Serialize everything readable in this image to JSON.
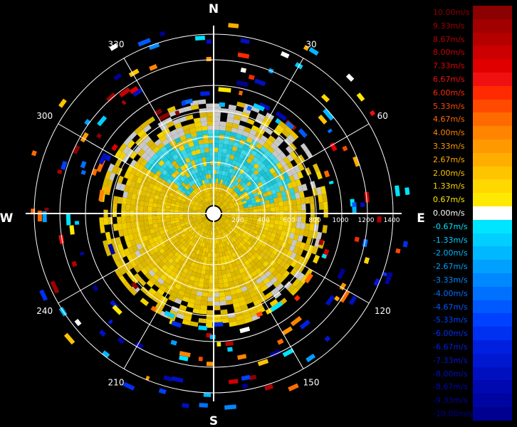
{
  "chart_data": {
    "type": "polar-radar",
    "compass": {
      "north": "N",
      "east": "E",
      "south": "S",
      "west": "W"
    },
    "angle_labels": [
      "30",
      "60",
      "120",
      "150",
      "210",
      "240",
      "300",
      "330"
    ],
    "range_labels": [
      "200",
      "400",
      "600",
      "800",
      "1000",
      "1200",
      "1400"
    ],
    "rings": [
      200,
      400,
      600,
      800,
      1000,
      1200,
      1400
    ],
    "spokes_deg": [
      0,
      30,
      60,
      90,
      120,
      150,
      180,
      210,
      240,
      270,
      300,
      330
    ],
    "legend": [
      {
        "label": "10.00m/s",
        "color": "#8b0000"
      },
      {
        "label": "9.33m/s",
        "color": "#a00000"
      },
      {
        "label": "8.67m/s",
        "color": "#b50000"
      },
      {
        "label": "8.00m/s",
        "color": "#cc0000"
      },
      {
        "label": "7.33m/s",
        "color": "#e00000"
      },
      {
        "label": "6.67m/s",
        "color": "#f01010"
      },
      {
        "label": "6.00m/s",
        "color": "#ff2a00"
      },
      {
        "label": "5.33m/s",
        "color": "#ff4a00"
      },
      {
        "label": "4.67m/s",
        "color": "#ff6a00"
      },
      {
        "label": "4.00m/s",
        "color": "#ff8400"
      },
      {
        "label": "3.33m/s",
        "color": "#ff9900"
      },
      {
        "label": "2.67m/s",
        "color": "#ffae00"
      },
      {
        "label": "2.00m/s",
        "color": "#ffc400"
      },
      {
        "label": "1.33m/s",
        "color": "#ffd800"
      },
      {
        "label": "0.67m/s",
        "color": "#ffe900"
      },
      {
        "label": "0.00m/s",
        "color": "#ffffff"
      },
      {
        "label": "-0.67m/s",
        "color": "#00e5ff"
      },
      {
        "label": "-1.33m/s",
        "color": "#00cfff"
      },
      {
        "label": "-2.00m/s",
        "color": "#00b8ff"
      },
      {
        "label": "-2.67m/s",
        "color": "#00a0ff"
      },
      {
        "label": "-3.33m/s",
        "color": "#0088ff"
      },
      {
        "label": "-4.00m/s",
        "color": "#0070ff"
      },
      {
        "label": "-4.67m/s",
        "color": "#0058ff"
      },
      {
        "label": "-5.33m/s",
        "color": "#0040ff"
      },
      {
        "label": "-6.00m/s",
        "color": "#0030f0"
      },
      {
        "label": "-6.67m/s",
        "color": "#0020e0"
      },
      {
        "label": "-7.33m/s",
        "color": "#0018d0"
      },
      {
        "label": "-8.00m/s",
        "color": "#0010c0"
      },
      {
        "label": "-8.67m/s",
        "color": "#0008b0"
      },
      {
        "label": "-9.33m/s",
        "color": "#0004a0"
      },
      {
        "label": "-10.00m/s",
        "color": "#000090"
      }
    ],
    "colors": {
      "background": "#000000",
      "grid": "#ffffff",
      "approaching_fill": "#e6c800",
      "receding_fill": "#22ccdd",
      "zero_fill": "#c8c8c8"
    },
    "field_description": "Doppler radial-velocity field: dense positive (yellow) returns within ~800 range, negative (cyan) patch to the north, sparse scattered bins beyond."
  }
}
